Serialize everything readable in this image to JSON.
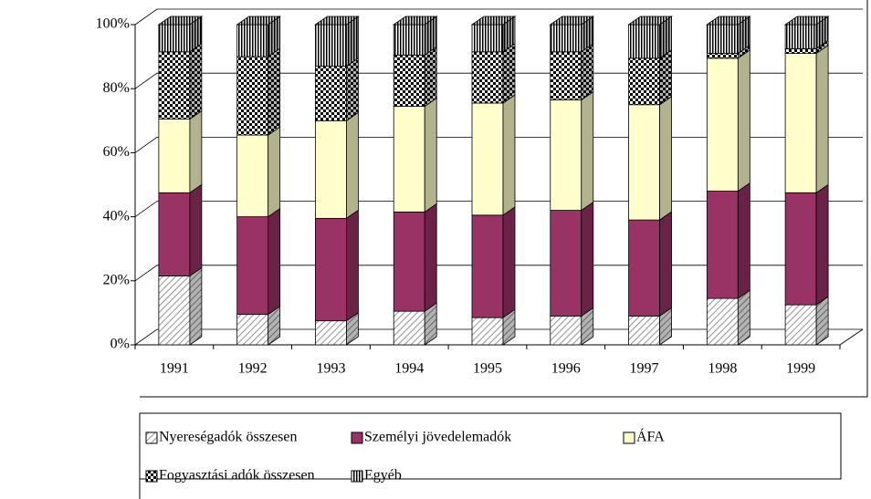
{
  "chart_data": {
    "type": "bar",
    "stacked": true,
    "categories": [
      "1991",
      "1992",
      "1993",
      "1994",
      "1995",
      "1996",
      "1997",
      "1998",
      "1999"
    ],
    "series": [
      {
        "name": "Nyereségadók összesen",
        "color": "#ffffff",
        "values": [
          21.5,
          9.5,
          7.5,
          10.5,
          8.5,
          9,
          9,
          14.5,
          12.5
        ]
      },
      {
        "name": "Személyi jövedelemadók",
        "color": "#993366",
        "values": [
          26,
          30.5,
          32,
          31,
          32,
          33,
          30,
          33.5,
          35
        ]
      },
      {
        "name": "ÁFA",
        "color": "#ffffcc",
        "values": [
          23,
          25.5,
          30.5,
          33,
          35,
          34.5,
          36,
          41.5,
          43.5
        ]
      },
      {
        "name": "Fogyasztási adók összesen",
        "color": "#ffffff",
        "values": [
          21,
          24.5,
          17,
          16,
          16,
          15,
          14.5,
          1.5,
          1.5
        ]
      },
      {
        "name": "Egyéb",
        "color": "#ffffff",
        "values": [
          8.5,
          10,
          13,
          9.5,
          8.5,
          8.5,
          10.5,
          9,
          7.5
        ]
      }
    ],
    "ylim": [
      0,
      100
    ],
    "yticks": [
      {
        "value": 0,
        "label": "0%"
      },
      {
        "value": 20,
        "label": "20%"
      },
      {
        "value": 40,
        "label": "40%"
      },
      {
        "value": 60,
        "label": "60%"
      },
      {
        "value": 80,
        "label": "80%"
      },
      {
        "value": 100,
        "label": "100%"
      }
    ],
    "grid": true,
    "legend": "bottom"
  }
}
